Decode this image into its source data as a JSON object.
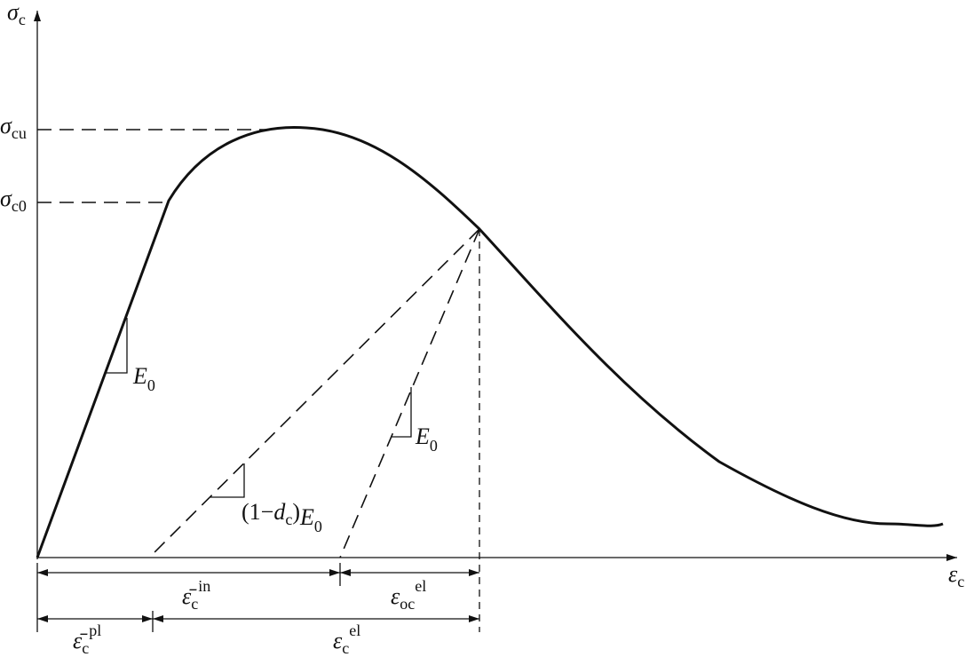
{
  "axes": {
    "y_label": {
      "base": "σ",
      "sub": "c"
    },
    "x_label": {
      "base": "ε",
      "sub": "c"
    },
    "sigma_cu": {
      "base": "σ",
      "sub": "cu"
    },
    "sigma_c0": {
      "base": "σ",
      "sub": "c0"
    }
  },
  "slopes": {
    "initial": {
      "base": "E",
      "sub": "0"
    },
    "reload": {
      "base": "E",
      "sub": "0"
    },
    "damaged": {
      "prefix": "(1−",
      "d": "d",
      "dsub": "c",
      "mid": ")",
      "base": "E",
      "sub": "0"
    }
  },
  "dimensions": {
    "eps_in": {
      "base": "ε̄",
      "sub": "c",
      "sup": "in"
    },
    "eps_oc_el": {
      "base": "ε",
      "sub": "oc",
      "sup": "el"
    },
    "eps_pl": {
      "base": "ε̄",
      "sub": "c",
      "sup": "pl"
    },
    "eps_el": {
      "base": "ε",
      "sub": "c",
      "sup": "el"
    }
  }
}
